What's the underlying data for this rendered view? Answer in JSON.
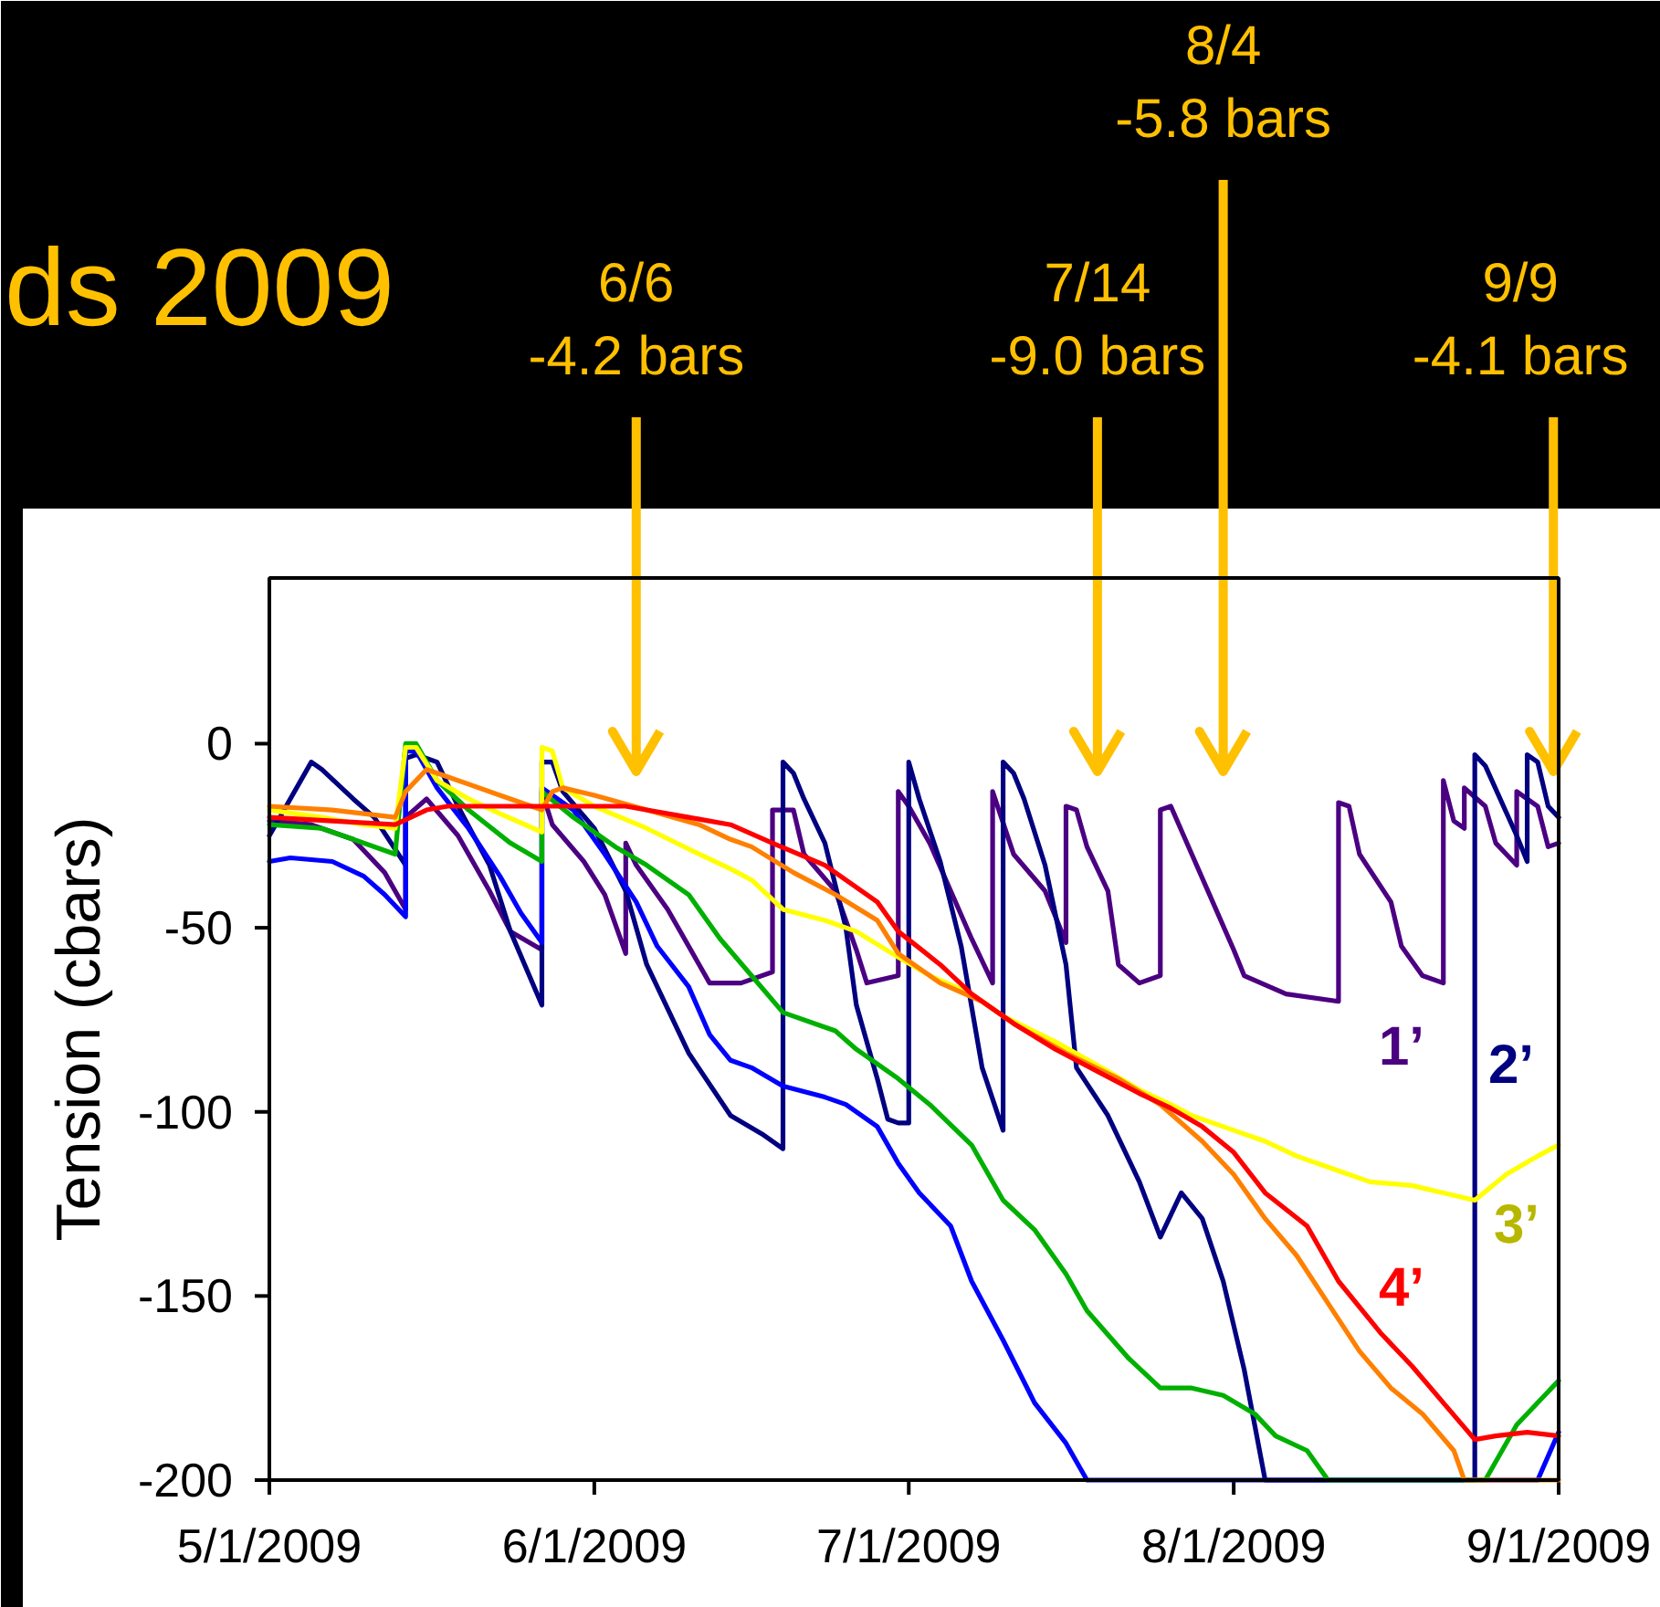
{
  "chart_data": {
    "type": "line",
    "title": "ds 2009",
    "ylabel": "Tension (cbars)",
    "xlim": [
      "2009-05-01",
      "2009-09-01"
    ],
    "xticks": [
      {
        "value": "2009-05-01",
        "label": "5/1/2009"
      },
      {
        "value": "2009-06-01",
        "label": "6/1/2009"
      },
      {
        "value": "2009-07-01",
        "label": "7/1/2009"
      },
      {
        "value": "2009-08-01",
        "label": "8/1/2009"
      },
      {
        "value": "2009-09-01",
        "label": "9/1/2009"
      }
    ],
    "ylim": [
      -200,
      45
    ],
    "yticks": [
      -200,
      -150,
      -100,
      -50,
      0
    ],
    "series": [
      {
        "name": "1’",
        "color": "#4b0082",
        "x": [
          "2009-05-01",
          "2009-05-05",
          "2009-05-09",
          "2009-05-12",
          "2009-05-14",
          "2009-05-14",
          "2009-05-16",
          "2009-05-19",
          "2009-05-22",
          "2009-05-24",
          "2009-05-27",
          "2009-05-27",
          "2009-05-28",
          "2009-05-31",
          "2009-06-02",
          "2009-06-04",
          "2009-06-04",
          "2009-06-05",
          "2009-06-08",
          "2009-06-11",
          "2009-06-12",
          "2009-06-15",
          "2009-06-18",
          "2009-06-18",
          "2009-06-20",
          "2009-06-21",
          "2009-06-24",
          "2009-06-26",
          "2009-06-27",
          "2009-06-30",
          "2009-06-30",
          "2009-07-01",
          "2009-07-03",
          "2009-07-05",
          "2009-07-07",
          "2009-07-09",
          "2009-07-09",
          "2009-07-11",
          "2009-07-14",
          "2009-07-16",
          "2009-07-16",
          "2009-07-17",
          "2009-07-18",
          "2009-07-20",
          "2009-07-21",
          "2009-07-23",
          "2009-07-25",
          "2009-07-25",
          "2009-07-26",
          "2009-07-28",
          "2009-07-30",
          "2009-08-01",
          "2009-08-02",
          "2009-08-06",
          "2009-08-11",
          "2009-08-11",
          "2009-08-12",
          "2009-08-13",
          "2009-08-16",
          "2009-08-17",
          "2009-08-19",
          "2009-08-21",
          "2009-08-21",
          "2009-08-22",
          "2009-08-23",
          "2009-08-23",
          "2009-08-25",
          "2009-08-26",
          "2009-08-28",
          "2009-08-28",
          "2009-08-30",
          "2009-08-31",
          "2009-09-01"
        ],
        "values": [
          -21,
          -22,
          -26,
          -35,
          -45,
          -20,
          -15,
          -25,
          -40,
          -51,
          -56,
          -13,
          -22,
          -32,
          -41,
          -57,
          -27,
          -33,
          -45,
          -60,
          -65,
          -65,
          -62,
          -18,
          -18,
          -30,
          -40,
          -56,
          -65,
          -63,
          -13,
          -17,
          -27,
          -40,
          -53,
          -65,
          -13,
          -30,
          -40,
          -54,
          -17,
          -18,
          -28,
          -40,
          -60,
          -65,
          -63,
          -18,
          -17,
          -30,
          -43,
          -56,
          -63,
          -68,
          -70,
          -16,
          -17,
          -30,
          -43,
          -55,
          -63,
          -65,
          -10,
          -21,
          -23,
          -12,
          -17,
          -27,
          -33,
          -13,
          -17,
          -28,
          -27
        ]
      },
      {
        "name": "2’",
        "color": "#000080",
        "x": [
          "2009-05-01",
          "2009-05-05",
          "2009-05-06",
          "2009-05-09",
          "2009-05-11",
          "2009-05-14",
          "2009-05-14",
          "2009-05-15",
          "2009-05-17",
          "2009-05-19",
          "2009-05-22",
          "2009-05-24",
          "2009-05-27",
          "2009-05-27",
          "2009-05-28",
          "2009-05-29",
          "2009-06-01",
          "2009-06-04",
          "2009-06-06",
          "2009-06-10",
          "2009-06-14",
          "2009-06-17",
          "2009-06-19",
          "2009-06-19",
          "2009-06-20",
          "2009-06-21",
          "2009-06-23",
          "2009-06-25",
          "2009-06-26",
          "2009-06-28",
          "2009-06-29",
          "2009-06-30",
          "2009-07-01",
          "2009-07-01",
          "2009-07-02",
          "2009-07-04",
          "2009-07-06",
          "2009-07-08",
          "2009-07-10",
          "2009-07-10",
          "2009-07-11",
          "2009-07-12",
          "2009-07-14",
          "2009-07-16",
          "2009-07-17",
          "2009-07-20",
          "2009-07-23",
          "2009-07-25",
          "2009-07-27",
          "2009-07-29",
          "2009-07-31",
          "2009-08-02",
          "2009-08-04",
          "2009-08-24",
          "2009-08-24",
          "2009-08-25",
          "2009-08-28",
          "2009-08-29",
          "2009-08-29",
          "2009-08-30",
          "2009-08-31",
          "2009-09-01"
        ],
        "values": [
          -25,
          -5,
          -7,
          -15,
          -20,
          -33,
          -4,
          -3,
          -5,
          -17,
          -33,
          -51,
          -71,
          -5,
          -5,
          -13,
          -23,
          -40,
          -60,
          -84,
          -101,
          -106,
          -110,
          -5,
          -8,
          -15,
          -27,
          -50,
          -71,
          -91,
          -102,
          -103,
          -103,
          -5,
          -15,
          -32,
          -55,
          -88,
          -105,
          -5,
          -8,
          -15,
          -33,
          -60,
          -88,
          -101,
          -119,
          -134,
          -122,
          -129,
          -146,
          -170,
          -200,
          -200,
          -3,
          -6,
          -25,
          -32,
          -3,
          -5,
          -17,
          -20
        ]
      },
      {
        "color": "#0000ff",
        "x": [
          "2009-05-01",
          "2009-05-03",
          "2009-05-07",
          "2009-05-10",
          "2009-05-12",
          "2009-05-14",
          "2009-05-14",
          "2009-05-15",
          "2009-05-17",
          "2009-05-20",
          "2009-05-23",
          "2009-05-25",
          "2009-05-27",
          "2009-05-27",
          "2009-05-30",
          "2009-06-02",
          "2009-06-05",
          "2009-06-07",
          "2009-06-10",
          "2009-06-12",
          "2009-06-14",
          "2009-06-16",
          "2009-06-19",
          "2009-06-23",
          "2009-06-25",
          "2009-06-28",
          "2009-06-30",
          "2009-07-02",
          "2009-07-05",
          "2009-07-07",
          "2009-07-10",
          "2009-07-13",
          "2009-07-16",
          "2009-07-18",
          "2009-08-30",
          "2009-09-01"
        ],
        "values": [
          -32,
          -31,
          -32,
          -36,
          -41,
          -47,
          -2,
          -2,
          -12,
          -23,
          -36,
          -46,
          -54,
          -12,
          -18,
          -30,
          -43,
          -55,
          -66,
          -79,
          -86,
          -88,
          -93,
          -96,
          -98,
          -104,
          -114,
          -122,
          -131,
          -146,
          -162,
          -179,
          -190,
          -200,
          -200,
          -187
        ]
      },
      {
        "color": "#00b000",
        "x": [
          "2009-05-01",
          "2009-05-06",
          "2009-05-09",
          "2009-05-13",
          "2009-05-14",
          "2009-05-15",
          "2009-05-17",
          "2009-05-20",
          "2009-05-24",
          "2009-05-27",
          "2009-05-27",
          "2009-05-30",
          "2009-06-03",
          "2009-06-06",
          "2009-06-10",
          "2009-06-13",
          "2009-06-16",
          "2009-06-19",
          "2009-06-22",
          "2009-06-24",
          "2009-06-26",
          "2009-06-30",
          "2009-07-03",
          "2009-07-07",
          "2009-07-10",
          "2009-07-13",
          "2009-07-16",
          "2009-07-18",
          "2009-07-22",
          "2009-07-25",
          "2009-07-28",
          "2009-07-31",
          "2009-08-03",
          "2009-08-05",
          "2009-08-08",
          "2009-08-10",
          "2009-08-25",
          "2009-08-28",
          "2009-08-30",
          "2009-09-01"
        ],
        "values": [
          -22,
          -23,
          -26,
          -30,
          0,
          0,
          -10,
          -18,
          -27,
          -32,
          -13,
          -20,
          -28,
          -33,
          -41,
          -53,
          -63,
          -73,
          -76,
          -78,
          -83,
          -91,
          -98,
          -109,
          -124,
          -132,
          -144,
          -154,
          -167,
          -175,
          -175,
          -177,
          -182,
          -188,
          -192,
          -200,
          -200,
          -185,
          -179,
          -173
        ]
      },
      {
        "name": "3’",
        "color": "#ffff00",
        "x": [
          "2009-05-01",
          "2009-05-06",
          "2009-05-10",
          "2009-05-13",
          "2009-05-14",
          "2009-05-15",
          "2009-05-17",
          "2009-05-20",
          "2009-05-23",
          "2009-05-27",
          "2009-05-27",
          "2009-05-28",
          "2009-05-29",
          "2009-06-01",
          "2009-06-06",
          "2009-06-11",
          "2009-06-14",
          "2009-06-16",
          "2009-06-19",
          "2009-06-23",
          "2009-06-26",
          "2009-06-30",
          "2009-07-03",
          "2009-07-07",
          "2009-07-10",
          "2009-07-15",
          "2009-07-20",
          "2009-07-23",
          "2009-07-26",
          "2009-07-28",
          "2009-07-31",
          "2009-08-04",
          "2009-08-07",
          "2009-08-11",
          "2009-08-14",
          "2009-08-18",
          "2009-08-21",
          "2009-08-24",
          "2009-08-27",
          "2009-08-30",
          "2009-09-01"
        ],
        "values": [
          -18,
          -20,
          -22,
          -23,
          -1,
          -1,
          -10,
          -15,
          -19,
          -24,
          -1,
          -2,
          -12,
          -17,
          -23,
          -30,
          -34,
          -37,
          -45,
          -48,
          -51,
          -58,
          -63,
          -68,
          -74,
          -81,
          -89,
          -94,
          -98,
          -101,
          -104,
          -108,
          -112,
          -116,
          -119,
          -120,
          -122,
          -124,
          -117,
          -112,
          -109
        ]
      },
      {
        "color": "#ff8000",
        "x": [
          "2009-05-01",
          "2009-05-07",
          "2009-05-13",
          "2009-05-14",
          "2009-05-16",
          "2009-05-18",
          "2009-05-23",
          "2009-05-27",
          "2009-05-28",
          "2009-05-29",
          "2009-06-01",
          "2009-06-06",
          "2009-06-11",
          "2009-06-14",
          "2009-06-16",
          "2009-06-20",
          "2009-06-24",
          "2009-06-28",
          "2009-06-30",
          "2009-07-04",
          "2009-07-08",
          "2009-07-11",
          "2009-07-16",
          "2009-07-21",
          "2009-07-25",
          "2009-07-29",
          "2009-08-01",
          "2009-08-04",
          "2009-08-07",
          "2009-08-10",
          "2009-08-13",
          "2009-08-16",
          "2009-08-19",
          "2009-08-22",
          "2009-08-23",
          "2009-09-01"
        ],
        "values": [
          -17,
          -18,
          -20,
          -13,
          -7,
          -9,
          -14,
          -18,
          -13,
          -12,
          -14,
          -18,
          -22,
          -26,
          -28,
          -35,
          -41,
          -48,
          -57,
          -65,
          -70,
          -76,
          -84,
          -91,
          -98,
          -108,
          -117,
          -129,
          -139,
          -152,
          -165,
          -175,
          -182,
          -192,
          -200,
          -200
        ]
      },
      {
        "name": "4’",
        "color": "#ff0000",
        "x": [
          "2009-05-01",
          "2009-05-07",
          "2009-05-13",
          "2009-05-16",
          "2009-05-18",
          "2009-05-26",
          "2009-06-04",
          "2009-06-10",
          "2009-06-14",
          "2009-06-18",
          "2009-06-23",
          "2009-06-28",
          "2009-06-30",
          "2009-07-04",
          "2009-07-07",
          "2009-07-11",
          "2009-07-15",
          "2009-07-19",
          "2009-07-23",
          "2009-07-26",
          "2009-07-29",
          "2009-08-01",
          "2009-08-04",
          "2009-08-08",
          "2009-08-11",
          "2009-08-15",
          "2009-08-18",
          "2009-08-21",
          "2009-08-24",
          "2009-08-26",
          "2009-08-29",
          "2009-09-01"
        ],
        "values": [
          -20,
          -21,
          -22,
          -18,
          -17,
          -17,
          -17,
          -20,
          -22,
          -27,
          -33,
          -43,
          -51,
          -60,
          -68,
          -76,
          -83,
          -89,
          -95,
          -99,
          -104,
          -111,
          -122,
          -131,
          -146,
          -160,
          -169,
          -179,
          -189,
          -188,
          -187,
          -188
        ]
      }
    ],
    "ref_lines": [
      {
        "axis": "x",
        "value": "2009-06-05",
        "label": "6/6\n-4.2 bars",
        "color": "#ffc000"
      },
      {
        "axis": "x",
        "value": "2009-07-19",
        "label": "7/14\n-9.0 bars",
        "color": "#ffc000"
      },
      {
        "axis": "x",
        "value": "2009-07-31",
        "label": "8/4\n-5.8 bars",
        "color": "#ffc000"
      },
      {
        "axis": "x",
        "value": "2009-08-31T12:00",
        "label": "9/9\n-4.1 bars",
        "color": "#ffc000"
      }
    ]
  }
}
